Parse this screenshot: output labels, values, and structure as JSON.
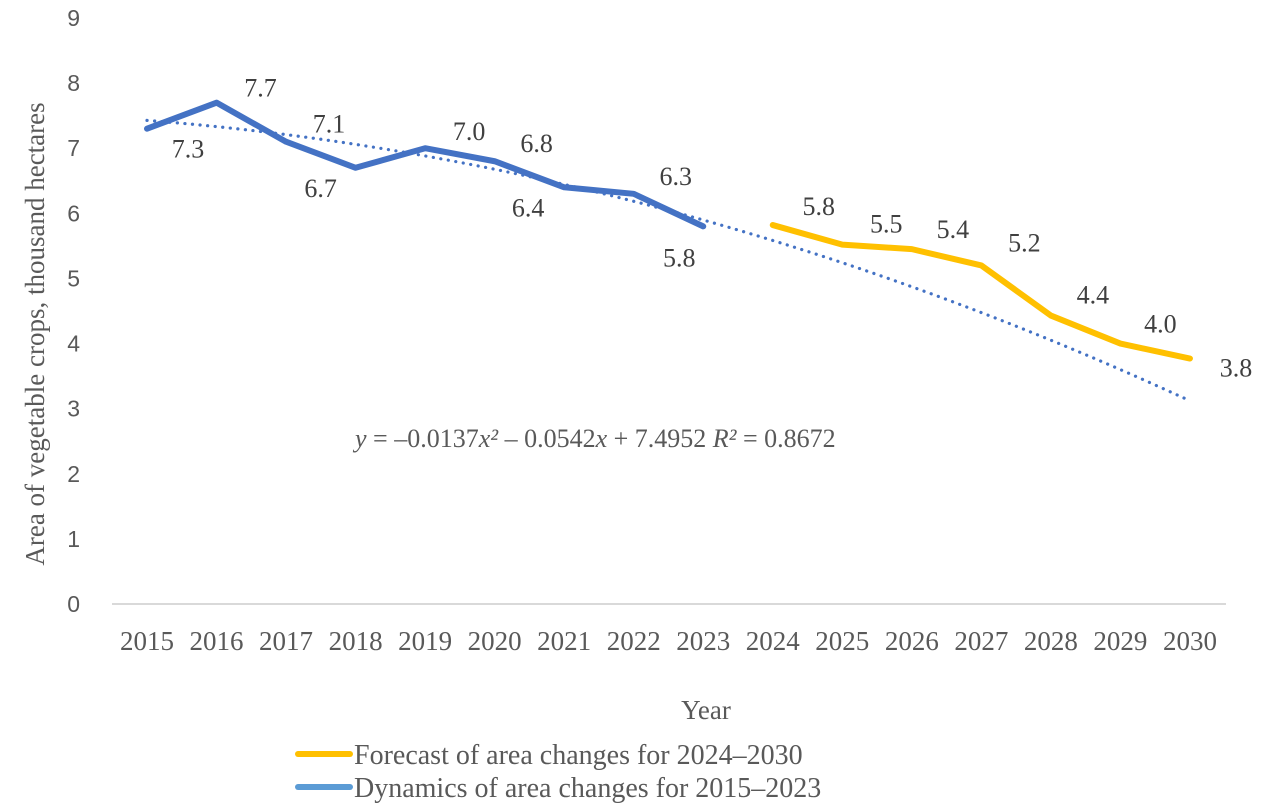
{
  "chart_data": {
    "type": "line",
    "title": "",
    "xlabel": "Year",
    "ylabel": "Area of vegetable crops, thousand hectares",
    "ylim": [
      0,
      9
    ],
    "yticks": [
      "0",
      "1",
      "2",
      "3",
      "4",
      "5",
      "6",
      "7",
      "8",
      "9"
    ],
    "grid": false,
    "categories": [
      "2015",
      "2016",
      "2017",
      "2018",
      "2019",
      "2020",
      "2021",
      "2022",
      "2023",
      "2024",
      "2025",
      "2026",
      "2027",
      "2028",
      "2029",
      "2030"
    ],
    "series": [
      {
        "name": "Dynamics of area changes for 2015–2023",
        "color": "#4472C4",
        "legend_color": "#5B9BD5",
        "categories": [
          "2015",
          "2016",
          "2017",
          "2018",
          "2019",
          "2020",
          "2021",
          "2022",
          "2023"
        ],
        "values": [
          7.3,
          7.7,
          7.1,
          6.7,
          7.0,
          6.8,
          6.4,
          6.3,
          5.8
        ],
        "labels": [
          "7.3",
          "7.7",
          "7.1",
          "6.7",
          "7.0",
          "6.8",
          "6.4",
          "6.3",
          "5.8"
        ]
      },
      {
        "name": "Forecast of area changes for 2024–2030",
        "color": "#FFC000",
        "legend_color": "#FFC000",
        "categories": [
          "2024",
          "2025",
          "2026",
          "2027",
          "2028",
          "2029",
          "2030"
        ],
        "values": [
          5.82,
          5.52,
          5.45,
          5.2,
          4.43,
          4.0,
          3.77
        ],
        "labels": [
          "5.8",
          "5.5",
          "5.4",
          "5.2",
          "4.4",
          "4.0",
          "3.8"
        ]
      }
    ],
    "trendline": {
      "type": "polynomial",
      "order": 2,
      "color": "#4472C4",
      "style": "dotted",
      "coefficients": {
        "a": -0.0137,
        "b": -0.0542,
        "c": 7.4952
      },
      "x_range": [
        1,
        16
      ],
      "equation_label": "y = –0.0137x² – 0.0542x + 7.4952 R² = 0.8672"
    },
    "legend": {
      "position": "bottom",
      "entries": [
        "Forecast of area changes for 2024–2030",
        "Dynamics of area changes for 2015–2023"
      ]
    }
  }
}
